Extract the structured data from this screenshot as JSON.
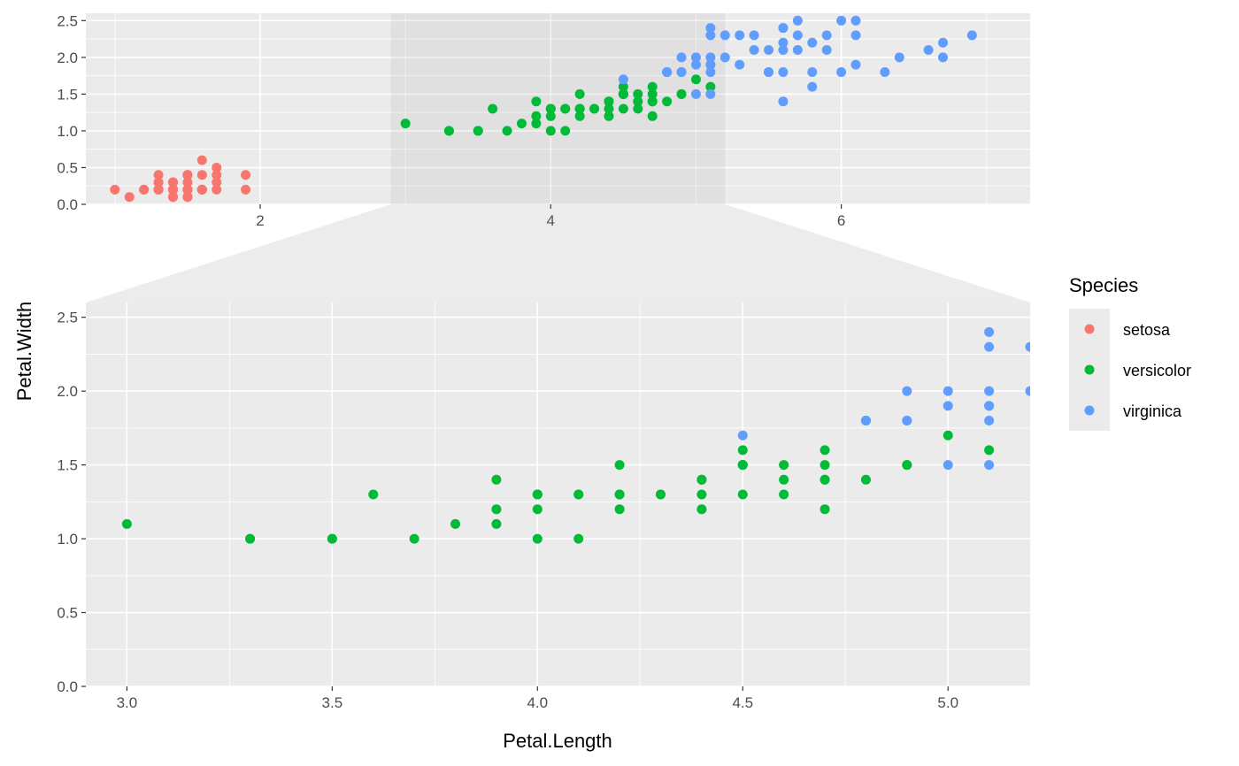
{
  "chart_data": {
    "type": "scatter",
    "xlabel": "Petal.Length",
    "ylabel": "Petal.Width",
    "legend": {
      "title": "Species",
      "position": "right"
    },
    "overview": {
      "xlim": [
        0.8,
        7.3
      ],
      "ylim": [
        0,
        2.6
      ],
      "xticks": [
        "2",
        "4",
        "6"
      ],
      "yticks": [
        "0.0",
        "0.5",
        "1.0",
        "1.5",
        "2.0",
        "2.5"
      ],
      "zoom_range": [
        2.9,
        5.2
      ]
    },
    "zoom": {
      "xlim": [
        2.9,
        5.2
      ],
      "ylim": [
        0,
        2.6
      ],
      "xticks": [
        "3.0",
        "3.5",
        "4.0",
        "4.5",
        "5.0"
      ],
      "yticks": [
        "0.0",
        "0.5",
        "1.0",
        "1.5",
        "2.0",
        "2.5"
      ]
    },
    "grid": true,
    "series": [
      {
        "name": "setosa",
        "color": "#F8766D",
        "points": [
          [
            1.4,
            0.2
          ],
          [
            1.4,
            0.2
          ],
          [
            1.3,
            0.2
          ],
          [
            1.5,
            0.2
          ],
          [
            1.4,
            0.2
          ],
          [
            1.7,
            0.4
          ],
          [
            1.4,
            0.3
          ],
          [
            1.5,
            0.2
          ],
          [
            1.4,
            0.2
          ],
          [
            1.5,
            0.1
          ],
          [
            1.5,
            0.2
          ],
          [
            1.6,
            0.2
          ],
          [
            1.4,
            0.1
          ],
          [
            1.1,
            0.1
          ],
          [
            1.2,
            0.2
          ],
          [
            1.5,
            0.4
          ],
          [
            1.3,
            0.4
          ],
          [
            1.4,
            0.3
          ],
          [
            1.7,
            0.3
          ],
          [
            1.5,
            0.3
          ],
          [
            1.7,
            0.2
          ],
          [
            1.5,
            0.4
          ],
          [
            1.0,
            0.2
          ],
          [
            1.7,
            0.5
          ],
          [
            1.9,
            0.2
          ],
          [
            1.6,
            0.2
          ],
          [
            1.6,
            0.4
          ],
          [
            1.5,
            0.2
          ],
          [
            1.4,
            0.2
          ],
          [
            1.6,
            0.2
          ],
          [
            1.6,
            0.2
          ],
          [
            1.5,
            0.4
          ],
          [
            1.5,
            0.1
          ],
          [
            1.4,
            0.2
          ],
          [
            1.5,
            0.2
          ],
          [
            1.2,
            0.2
          ],
          [
            1.3,
            0.2
          ],
          [
            1.4,
            0.1
          ],
          [
            1.3,
            0.2
          ],
          [
            1.5,
            0.2
          ],
          [
            1.3,
            0.3
          ],
          [
            1.3,
            0.3
          ],
          [
            1.3,
            0.2
          ],
          [
            1.6,
            0.6
          ],
          [
            1.9,
            0.4
          ],
          [
            1.4,
            0.3
          ],
          [
            1.6,
            0.2
          ],
          [
            1.4,
            0.2
          ],
          [
            1.5,
            0.2
          ],
          [
            1.4,
            0.2
          ]
        ]
      },
      {
        "name": "versicolor",
        "color": "#00BA38",
        "points": [
          [
            4.7,
            1.4
          ],
          [
            4.5,
            1.5
          ],
          [
            4.9,
            1.5
          ],
          [
            4.0,
            1.3
          ],
          [
            4.6,
            1.5
          ],
          [
            4.5,
            1.3
          ],
          [
            4.7,
            1.6
          ],
          [
            3.3,
            1.0
          ],
          [
            4.6,
            1.3
          ],
          [
            3.9,
            1.4
          ],
          [
            3.5,
            1.0
          ],
          [
            4.2,
            1.5
          ],
          [
            4.0,
            1.0
          ],
          [
            4.7,
            1.4
          ],
          [
            3.6,
            1.3
          ],
          [
            4.4,
            1.4
          ],
          [
            4.5,
            1.5
          ],
          [
            4.1,
            1.0
          ],
          [
            4.5,
            1.5
          ],
          [
            3.9,
            1.1
          ],
          [
            4.8,
            1.8
          ],
          [
            4.0,
            1.3
          ],
          [
            4.9,
            1.5
          ],
          [
            4.7,
            1.2
          ],
          [
            4.3,
            1.3
          ],
          [
            4.4,
            1.4
          ],
          [
            4.8,
            1.4
          ],
          [
            5.0,
            1.7
          ],
          [
            4.5,
            1.5
          ],
          [
            3.5,
            1.0
          ],
          [
            3.8,
            1.1
          ],
          [
            3.7,
            1.0
          ],
          [
            3.9,
            1.2
          ],
          [
            5.1,
            1.6
          ],
          [
            4.5,
            1.5
          ],
          [
            4.5,
            1.6
          ],
          [
            4.7,
            1.5
          ],
          [
            4.4,
            1.3
          ],
          [
            4.1,
            1.3
          ],
          [
            4.0,
            1.3
          ],
          [
            4.4,
            1.2
          ],
          [
            4.6,
            1.4
          ],
          [
            4.0,
            1.2
          ],
          [
            3.3,
            1.0
          ],
          [
            4.2,
            1.3
          ],
          [
            4.2,
            1.2
          ],
          [
            4.2,
            1.3
          ],
          [
            4.3,
            1.3
          ],
          [
            3.0,
            1.1
          ],
          [
            4.1,
            1.3
          ]
        ]
      },
      {
        "name": "virginica",
        "color": "#619CFF",
        "points": [
          [
            6.0,
            2.5
          ],
          [
            5.1,
            1.9
          ],
          [
            5.9,
            2.1
          ],
          [
            5.6,
            1.8
          ],
          [
            5.8,
            2.2
          ],
          [
            6.6,
            2.1
          ],
          [
            4.5,
            1.7
          ],
          [
            6.3,
            1.8
          ],
          [
            5.8,
            1.8
          ],
          [
            6.1,
            2.5
          ],
          [
            5.1,
            2.0
          ],
          [
            5.3,
            1.9
          ],
          [
            5.5,
            2.1
          ],
          [
            5.0,
            2.0
          ],
          [
            5.1,
            2.4
          ],
          [
            5.3,
            2.3
          ],
          [
            5.5,
            1.8
          ],
          [
            6.7,
            2.2
          ],
          [
            6.9,
            2.3
          ],
          [
            5.0,
            1.5
          ],
          [
            5.7,
            2.3
          ],
          [
            4.9,
            2.0
          ],
          [
            6.7,
            2.0
          ],
          [
            4.9,
            1.8
          ],
          [
            5.7,
            2.1
          ],
          [
            6.0,
            1.8
          ],
          [
            4.8,
            1.8
          ],
          [
            4.9,
            1.8
          ],
          [
            5.6,
            2.1
          ],
          [
            5.8,
            1.6
          ],
          [
            6.1,
            1.9
          ],
          [
            6.4,
            2.0
          ],
          [
            5.6,
            2.2
          ],
          [
            5.1,
            1.5
          ],
          [
            5.6,
            1.4
          ],
          [
            6.1,
            2.3
          ],
          [
            5.6,
            2.4
          ],
          [
            5.5,
            1.8
          ],
          [
            4.8,
            1.8
          ],
          [
            5.4,
            2.1
          ],
          [
            5.6,
            2.4
          ],
          [
            5.1,
            2.3
          ],
          [
            5.1,
            1.9
          ],
          [
            5.9,
            2.3
          ],
          [
            5.7,
            2.5
          ],
          [
            5.2,
            2.3
          ],
          [
            5.0,
            1.9
          ],
          [
            5.2,
            2.0
          ],
          [
            5.4,
            2.3
          ],
          [
            5.1,
            1.8
          ]
        ]
      }
    ]
  }
}
